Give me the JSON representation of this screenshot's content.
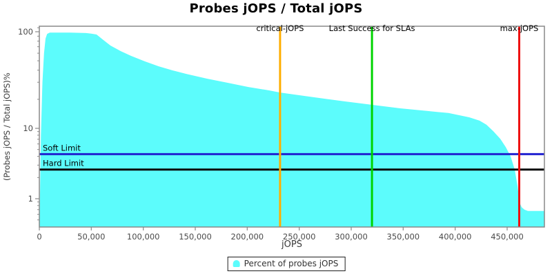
{
  "title": "Probes jOPS / Total jOPS",
  "x_axis": {
    "title": "jOPS",
    "ticks": [
      {
        "v": 0,
        "label": "0"
      },
      {
        "v": 50000,
        "label": "50,000"
      },
      {
        "v": 100000,
        "label": "100,000"
      },
      {
        "v": 150000,
        "label": "150,000"
      },
      {
        "v": 200000,
        "label": "200,000"
      },
      {
        "v": 250000,
        "label": "250,000"
      },
      {
        "v": 300000,
        "label": "300,000"
      },
      {
        "v": 350000,
        "label": "350,000"
      },
      {
        "v": 400000,
        "label": "400,000"
      },
      {
        "v": 450000,
        "label": "450,000"
      }
    ]
  },
  "y_axis": {
    "title": "(Probes jOPS / Total jOPS)%",
    "major_ticks": [
      {
        "v": 100,
        "label": "100"
      },
      {
        "v": 10,
        "label": "10"
      },
      {
        "v": 1,
        "label": "1"
      }
    ],
    "minor_ticks": [
      0.5,
      0.6,
      0.7,
      0.8,
      0.9,
      2,
      3,
      4,
      5,
      6,
      7,
      8,
      9,
      20,
      30,
      40,
      50,
      60,
      70,
      80,
      90,
      110
    ]
  },
  "legend": {
    "label": "Percent of probes jOPS",
    "swatch_color": "#5CFCFC"
  },
  "colors": {
    "area": "#5CFCFC",
    "critical": "#FFAE00",
    "last_success": "#00D400",
    "max": "#EE1111",
    "soft_limit": "#2020D0",
    "hard_limit": "#0a0a0a",
    "plot_border": "#888888",
    "tick_text": "#4a4a4a"
  },
  "chart_data": {
    "type": "area",
    "title": "Probes jOPS / Total jOPS",
    "xlabel": "jOPS",
    "ylabel": "(Probes jOPS / Total jOPS)%",
    "x_scale": "linear",
    "y_scale": "log",
    "xlim": [
      0,
      485800
    ],
    "ylim": [
      0.4,
      114
    ],
    "grid": false,
    "legend_position": "bottom-center",
    "series": [
      {
        "name": "Percent of probes jOPS",
        "color": "#5CFCFC",
        "points": [
          [
            200,
            0.4
          ],
          [
            1500,
            8
          ],
          [
            3000,
            30
          ],
          [
            4500,
            60
          ],
          [
            6000,
            85
          ],
          [
            7500,
            95
          ],
          [
            10000,
            98
          ],
          [
            30000,
            98
          ],
          [
            45000,
            97
          ],
          [
            50000,
            95.5
          ],
          [
            55000,
            93.7
          ],
          [
            61700,
            82
          ],
          [
            68400,
            72
          ],
          [
            78300,
            63
          ],
          [
            88300,
            56.2
          ],
          [
            101600,
            49.3
          ],
          [
            114800,
            43.9
          ],
          [
            128100,
            39.8
          ],
          [
            141400,
            36.6
          ],
          [
            161300,
            32.7
          ],
          [
            181200,
            29.6
          ],
          [
            201100,
            26.8
          ],
          [
            221000,
            24.7
          ],
          [
            231600,
            23.5
          ],
          [
            254200,
            21.7
          ],
          [
            274100,
            20.3
          ],
          [
            294000,
            19.0
          ],
          [
            320600,
            17.5
          ],
          [
            347100,
            16.1
          ],
          [
            373700,
            15.1
          ],
          [
            393600,
            14.4
          ],
          [
            413500,
            13.0
          ],
          [
            423500,
            12.0
          ],
          [
            430100,
            10.9
          ],
          [
            436700,
            9.1
          ],
          [
            443400,
            7.1
          ],
          [
            448700,
            5.4
          ],
          [
            453300,
            4.0
          ],
          [
            457300,
            2.6
          ],
          [
            460000,
            1.5
          ],
          [
            461900,
            0.89
          ],
          [
            463900,
            0.76
          ],
          [
            466600,
            0.7
          ],
          [
            469900,
            0.67
          ],
          [
            485800,
            0.67
          ]
        ]
      }
    ],
    "vlines": [
      {
        "label": "critical-jOPS",
        "x": 231600,
        "color": "#FFAE00"
      },
      {
        "label": "Last Success for SLAs",
        "x": 320000,
        "color": "#00D400"
      },
      {
        "label": "max-jOPS",
        "x": 461600,
        "color": "#EE1111"
      }
    ],
    "hlines": [
      {
        "label": "Soft Limit",
        "y": 4.3,
        "color": "#2020D0"
      },
      {
        "label": "Hard Limit",
        "y": 2.6,
        "color": "#0a0a0a"
      }
    ]
  }
}
